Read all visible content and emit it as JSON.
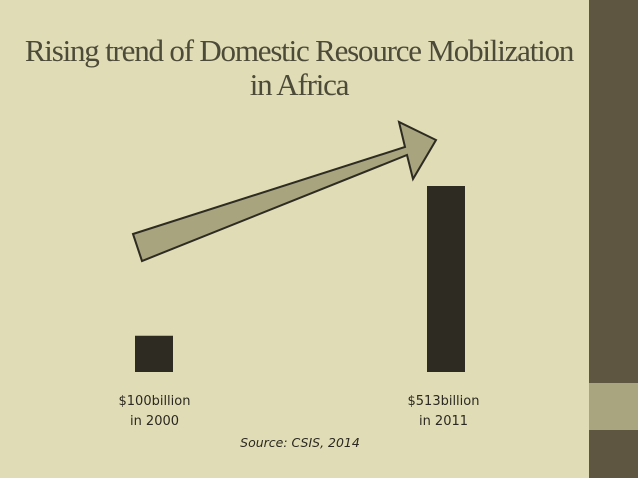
{
  "title": {
    "line1": "Rising trend of Domestic Resource Mobilization",
    "line2": "in Africa"
  },
  "labels": [
    {
      "line1": "$100billion",
      "line2": "in 2000"
    },
    {
      "line1": "$513billion",
      "line2": "in 2011"
    }
  ],
  "source": "Source: CSIS, 2014",
  "colors": {
    "background": "#e0dcb6",
    "bar": "#2e2b22",
    "arrow_fill": "#a7a47e",
    "arrow_stroke": "#2e2b22",
    "title_text": "#4c4a38",
    "side_band_dark": "#5e5641",
    "side_band_light": "#a8a57f"
  },
  "chart_data": {
    "type": "bar",
    "title": "Rising trend of Domestic Resource Mobilization in Africa",
    "categories": [
      "2000",
      "2011"
    ],
    "values": [
      100,
      513
    ],
    "unit": "billion USD",
    "data_labels": [
      "$100billion in 2000",
      "$513billion in 2011"
    ],
    "annotation": "upward trend arrow from first bar to second bar",
    "source": "Source: CSIS, 2014",
    "grid": false,
    "axes_visible": false
  }
}
